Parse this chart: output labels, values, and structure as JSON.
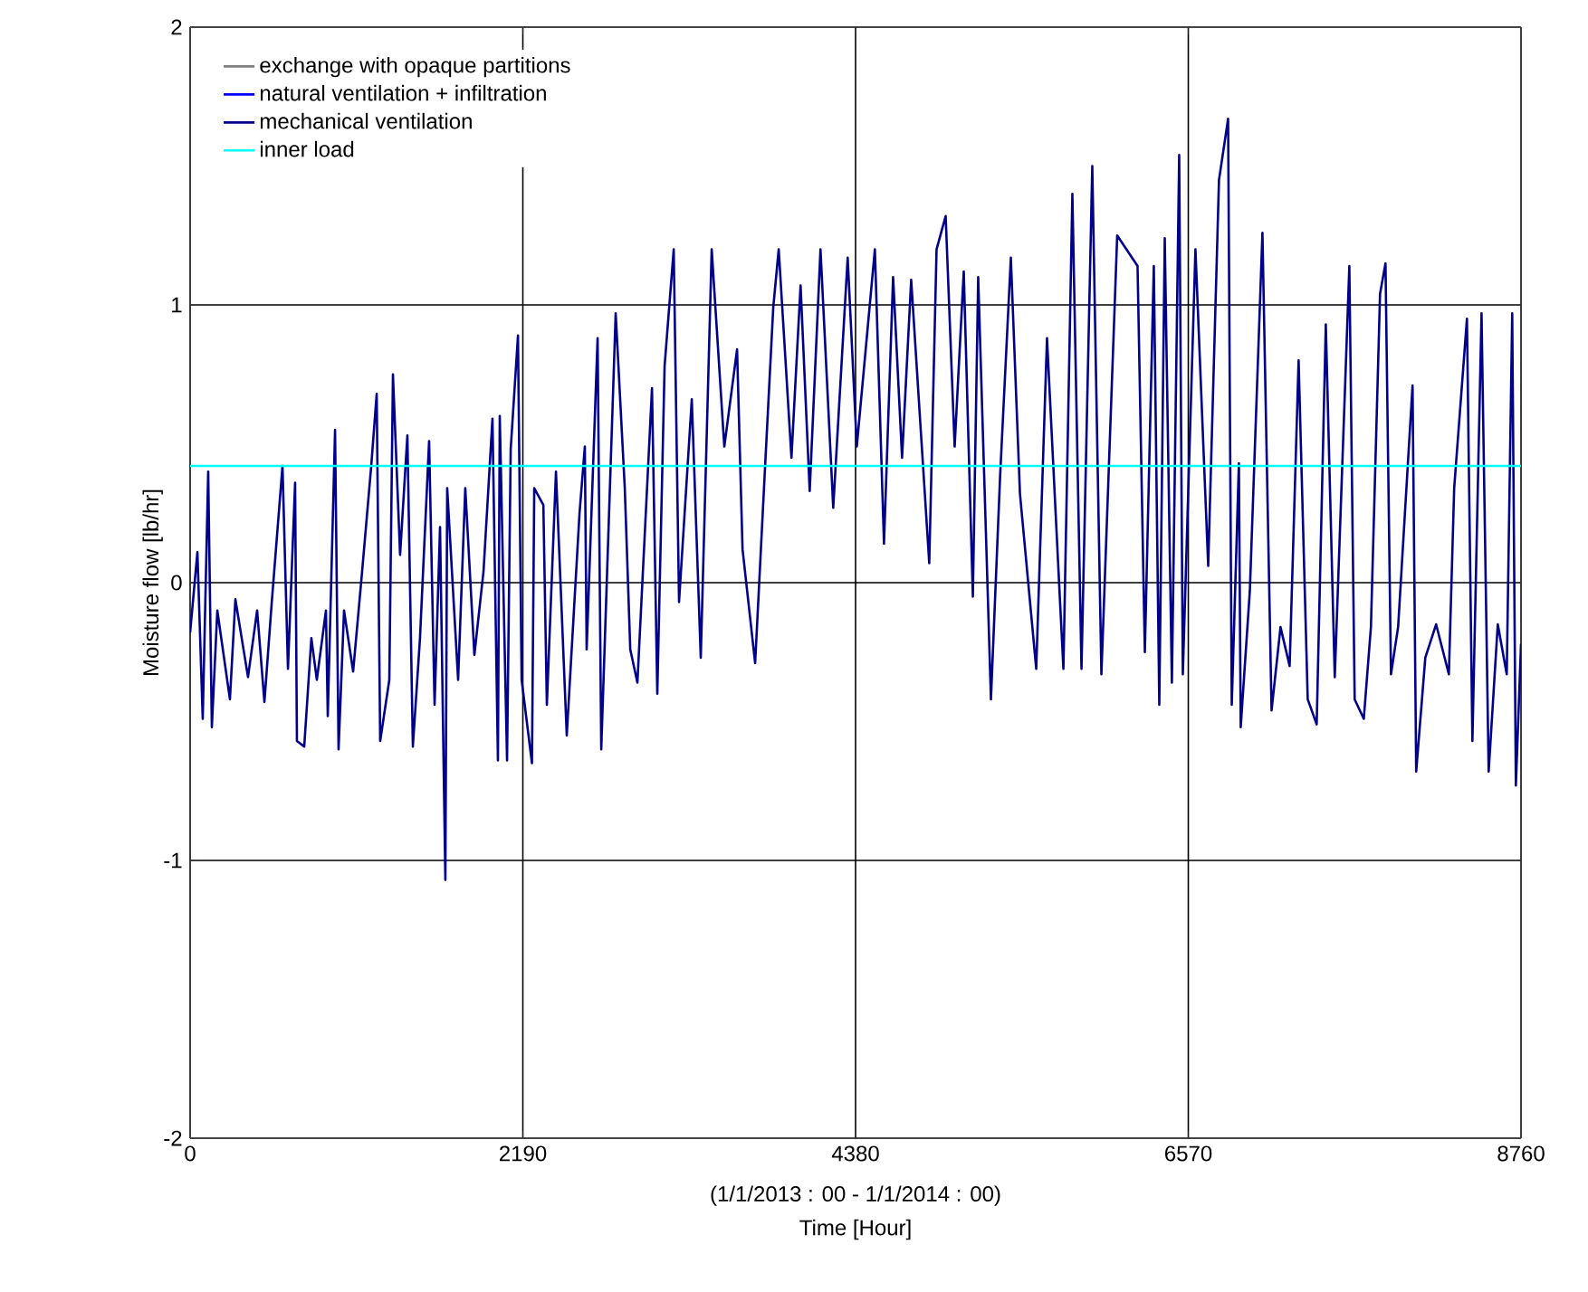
{
  "chart_data": {
    "type": "line",
    "xlabel": "Time  [Hour]",
    "ylabel": "Moisture flow [lb/hr]",
    "annotations": [
      "(1/1/2013 : 00 - 1/1/2014 : 00)"
    ],
    "xlim": [
      0,
      8760
    ],
    "xticks": [
      0,
      2190,
      4380,
      6570,
      8760
    ],
    "ylim": [
      -2,
      2
    ],
    "yticks": [
      -2,
      -1,
      0,
      1,
      2
    ],
    "grid": true,
    "legend": "top left",
    "line_style": "solid",
    "marker": "none",
    "series": [
      {
        "name": "exchange with opaque partitions",
        "color": "#808080"
      },
      {
        "name": "natural ventilation + infiltration",
        "color": "#0000ff"
      },
      {
        "name": "mechanical ventilation",
        "color": "#00008b",
        "x": [
          0,
          48,
          83,
          119,
          143,
          179,
          262,
          298,
          381,
          441,
          489,
          536,
          608,
          644,
          691,
          703,
          751,
          798,
          834,
          894,
          906,
          954,
          977,
          1013,
          1073,
          1132,
          1192,
          1228,
          1251,
          1311,
          1335,
          1382,
          1430,
          1466,
          1513,
          1573,
          1609,
          1645,
          1680,
          1692,
          1764,
          1811,
          1871,
          1931,
          1990,
          2026,
          2038,
          2086,
          2110,
          2158,
          2182,
          2250,
          2265,
          2325,
          2348,
          2408,
          2479,
          2563,
          2598,
          2610,
          2682,
          2706,
          2801,
          2861,
          2897,
          2944,
          3040,
          3075,
          3123,
          3183,
          3218,
          3302,
          3361,
          3433,
          3516,
          3600,
          3636,
          3719,
          3779,
          3838,
          3874,
          3958,
          4018,
          4078,
          4149,
          4233,
          4328,
          4388,
          4507,
          4567,
          4627,
          4686,
          4746,
          4865,
          4913,
          4973,
          5032,
          5092,
          5152,
          5187,
          5271,
          5331,
          5402,
          5462,
          5569,
          5640,
          5724,
          5748,
          5807,
          5867,
          5938,
          5998,
          6102,
          6236,
          6284,
          6343,
          6379,
          6415,
          6462,
          6510,
          6534,
          6617,
          6701,
          6772,
          6832,
          6856,
          6903,
          6915,
          6975,
          7058,
          7118,
          7177,
          7237,
          7296,
          7356,
          7415,
          7475,
          7534,
          7630,
          7665,
          7725,
          7772,
          7832,
          7868,
          7904,
          7951,
          8046,
          8070,
          8130,
          8201,
          8285,
          8320,
          8404,
          8440,
          8500,
          8547,
          8607,
          8666,
          8702,
          8726,
          8760
        ],
        "values": [
          -0.18,
          0.11,
          -0.49,
          0.4,
          -0.52,
          -0.1,
          -0.42,
          -0.06,
          -0.34,
          -0.1,
          -0.43,
          -0.08,
          0.42,
          -0.31,
          0.36,
          -0.57,
          -0.59,
          -0.2,
          -0.35,
          -0.1,
          -0.48,
          0.55,
          -0.6,
          -0.1,
          -0.32,
          0.04,
          0.42,
          0.68,
          -0.57,
          -0.35,
          0.75,
          0.1,
          0.53,
          -0.59,
          -0.2,
          0.51,
          -0.44,
          0.2,
          -1.07,
          0.34,
          -0.35,
          0.34,
          -0.26,
          0.04,
          0.59,
          -0.64,
          0.6,
          -0.64,
          0.48,
          0.89,
          -0.35,
          -0.65,
          0.34,
          0.28,
          -0.44,
          0.4,
          -0.55,
          0.25,
          0.49,
          -0.24,
          0.88,
          -0.6,
          0.97,
          0.34,
          -0.24,
          -0.36,
          0.7,
          -0.4,
          0.78,
          1.2,
          -0.07,
          0.66,
          -0.27,
          1.2,
          0.49,
          0.84,
          0.12,
          -0.29,
          0.36,
          0.99,
          1.2,
          0.45,
          1.07,
          0.33,
          1.2,
          0.27,
          1.17,
          0.49,
          1.2,
          0.14,
          1.1,
          0.45,
          1.09,
          0.07,
          1.2,
          1.32,
          0.49,
          1.12,
          -0.05,
          1.1,
          -0.42,
          0.38,
          1.17,
          0.32,
          -0.31,
          0.88,
          -0.05,
          -0.31,
          1.4,
          -0.31,
          1.5,
          -0.33,
          1.25,
          1.14,
          -0.25,
          1.14,
          -0.44,
          1.24,
          -0.36,
          1.54,
          -0.33,
          1.2,
          0.06,
          1.45,
          1.67,
          -0.44,
          0.43,
          -0.52,
          -0.03,
          1.26,
          -0.46,
          -0.16,
          -0.3,
          0.8,
          -0.42,
          -0.51,
          0.93,
          -0.34,
          1.14,
          -0.42,
          -0.49,
          -0.16,
          1.04,
          1.15,
          -0.33,
          -0.16,
          0.71,
          -0.68,
          -0.27,
          -0.15,
          -0.33,
          0.34,
          0.95,
          -0.57,
          0.97,
          -0.68,
          -0.15,
          -0.33,
          0.97,
          -0.73,
          -0.22
        ]
      },
      {
        "name": "inner load",
        "color": "#00ffff",
        "x": [
          0,
          8760
        ],
        "values": [
          0.42,
          0.42
        ]
      }
    ]
  }
}
